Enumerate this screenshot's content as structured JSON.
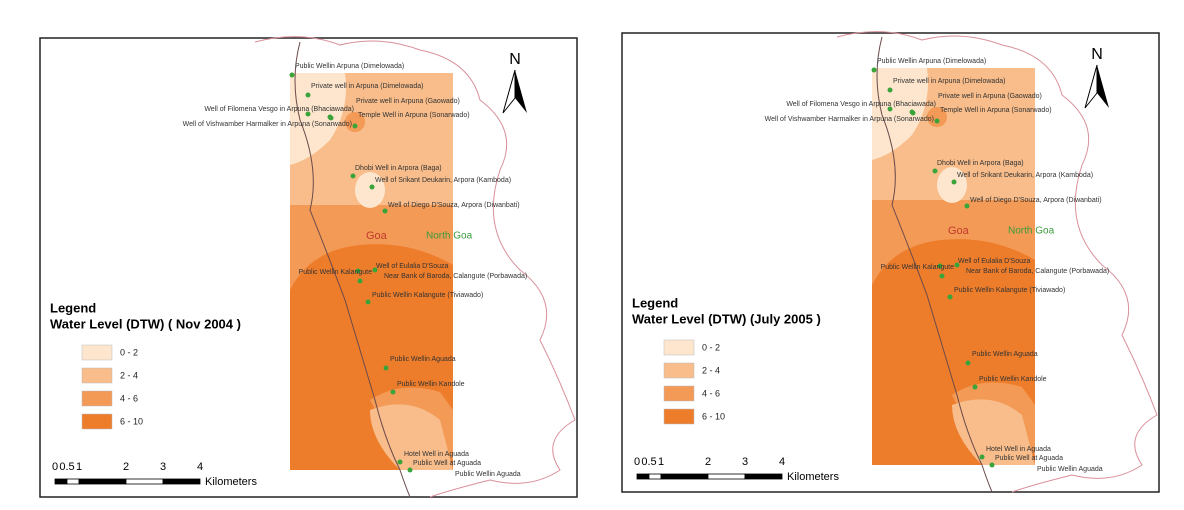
{
  "maps": [
    {
      "legend_title": "Legend",
      "legend_subtitle": "Water Level (DTW) ( Nov 2004 )",
      "legend_items": [
        {
          "label": "0 - 2",
          "color": "#fde6cd"
        },
        {
          "label": "2 - 4",
          "color": "#f8bd8a"
        },
        {
          "label": "4 - 6",
          "color": "#f39a56"
        },
        {
          "label": "6 - 10",
          "color": "#ee7d2b"
        }
      ],
      "north": "N",
      "region_labels": [
        "Goa",
        "North Goa"
      ],
      "scale_labels": [
        "0",
        "0.5",
        "1",
        "2",
        "3",
        "4"
      ],
      "scale_unit": "Kilometers",
      "places": [
        "Public Wellin Arpuna (Dimelowada)",
        "Private well in Arpuna (Dimelowada)",
        "Private well in Arpuna (Gaowado)",
        "Well of Filomena Vesgo in Arpuna (Bhaciawada)",
        "Well of Vishwamber Harmalker in Arpuna (Sonarwado)",
        "Temple Well in Arpuna (Sonarwado)",
        "Dhobi Well in Arpora (Baga)",
        "Well of Srikant Deukarin, Arpora (Kamboda)",
        "Well of Diego D'Souza, Arpora (Diwanbati)",
        "Well of Eulalia D'Souza",
        "Near Bank of Baroda, Calangute (Porbawada)",
        "Public Wellin Kalangute",
        "Public Wellin Kalangute (Tiviawado)",
        "Public Wellin Aguada",
        "Public Wellin Kandole",
        "Hotel Well in Aguada",
        "Public Well at Aguada",
        "Public Wellin Aguada"
      ]
    },
    {
      "legend_title": "Legend",
      "legend_subtitle": "Water Level (DTW) (July 2005 )",
      "legend_items": [
        {
          "label": "0 - 2",
          "color": "#fde6cd"
        },
        {
          "label": "2 - 4",
          "color": "#f8bd8a"
        },
        {
          "label": "4 - 6",
          "color": "#f39a56"
        },
        {
          "label": "6 - 10",
          "color": "#ee7d2b"
        }
      ],
      "north": "N",
      "region_labels": [
        "Goa",
        "North Goa"
      ],
      "scale_labels": [
        "0",
        "0.5",
        "1",
        "2",
        "3",
        "4"
      ],
      "scale_unit": "Kilometers",
      "places": [
        "Public Wellin Arpuna (Dimelowada)",
        "Private well in Arpuna (Dimelowada)",
        "Private well in Arpuna (Gaowado)",
        "Well of Filomena Vesgo in Arpuna (Bhaciawada)",
        "Well of Vishwamber Harmalker in Arpuna (Sonarwado)",
        "Temple Well in Arpuna (Sonarwado)",
        "Dhobi Well in Arpora (Baga)",
        "Well of Srikant Deukarin, Arpora (Kamboda)",
        "Well of Diego D'Souza, Arpora (Diwanbati)",
        "Well of Eulalia D'Souza",
        "Near Bank of Baroda, Calangute (Porbawada)",
        "Public Wellin Kalangute",
        "Public Wellin Kalangute (Tiviawado)",
        "Public Wellin Aguada",
        "Public Wellin Kandole",
        "Hotel Well in Aguada",
        "Public Well at Aguada",
        "Public Wellin Aguada"
      ]
    }
  ]
}
